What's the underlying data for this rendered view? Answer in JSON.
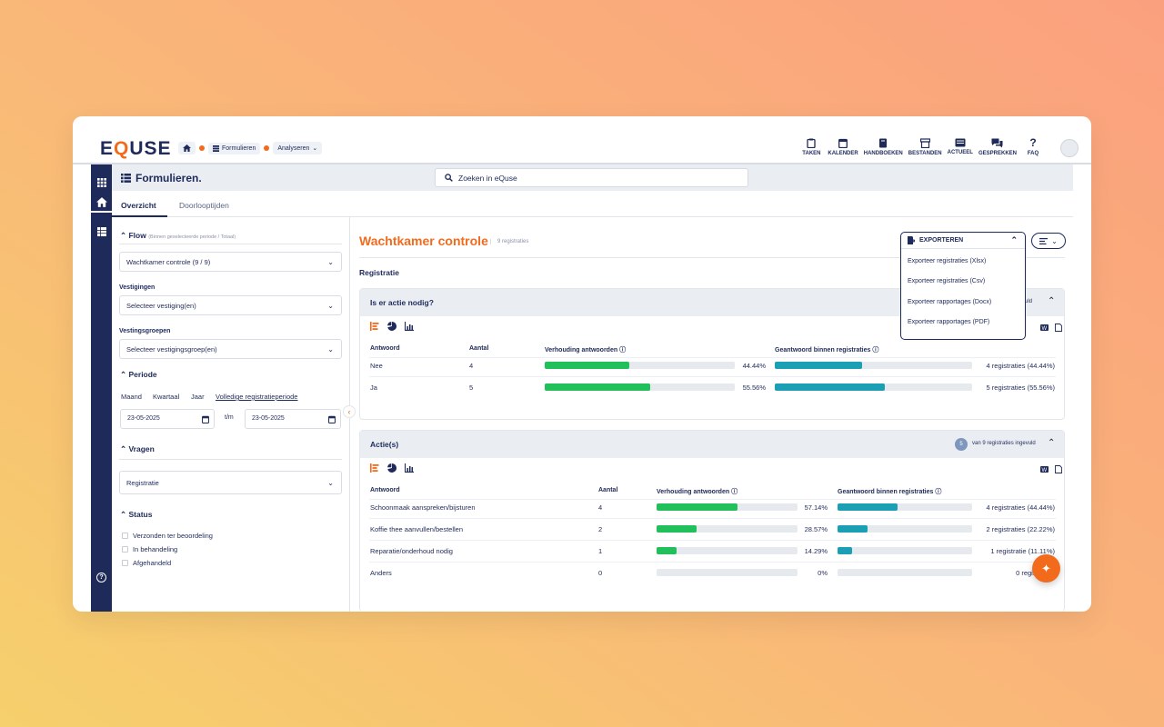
{
  "app": {
    "logo_prefix": "E",
    "logo_q": "Q",
    "logo_suffix": "USE"
  },
  "breadcrumb": {
    "home_icon": "home-icon",
    "items": [
      {
        "label": "Formulieren"
      },
      {
        "label": "Analyseren"
      }
    ]
  },
  "topnav": [
    {
      "label": "TAKEN",
      "icon": "clipboard-icon"
    },
    {
      "label": "KALENDER",
      "icon": "calendar-icon"
    },
    {
      "label": "HANDBOEKEN",
      "icon": "book-icon"
    },
    {
      "label": "BESTANDEN",
      "icon": "archive-icon"
    },
    {
      "label": "ACTUEEL",
      "icon": "news-icon"
    },
    {
      "label": "GESPREKKEN",
      "icon": "chat-icon"
    },
    {
      "label": "FAQ",
      "icon": "question-icon"
    }
  ],
  "header": {
    "title": "Formulieren.",
    "search_placeholder": "Zoeken in eQuse"
  },
  "tabs": [
    {
      "label": "Overzicht",
      "active": true
    },
    {
      "label": "Doorlooptijden",
      "active": false
    }
  ],
  "filters": {
    "flow": {
      "title": "Flow",
      "note": "(Binnen geselecteerde periode / Totaal)",
      "value": "Wachtkamer controle (9 / 9)"
    },
    "vestigingen": {
      "label": "Vestigingen",
      "placeholder": "Selecteer vestiging(en)"
    },
    "groepen": {
      "label": "Vestingsgroepen",
      "placeholder": "Selecteer vestigingsgroep(en)"
    },
    "periode": {
      "title": "Periode",
      "options": [
        "Maand",
        "Kwartaal",
        "Jaar"
      ],
      "full_link": "Volledige registratieperiode",
      "from": "23-05-2025",
      "sep": "t/m",
      "to": "23-05-2025"
    },
    "vragen": {
      "title": "Vragen",
      "value": "Registratie"
    },
    "status": {
      "title": "Status",
      "options": [
        "Verzonden ter beoordeling",
        "In behandeling",
        "Afgehandeld"
      ]
    }
  },
  "main": {
    "title": "Wachtkamer controle",
    "count": "9 registraties",
    "section": "Registratie",
    "export_label": "EXPORTEREN",
    "export_options": [
      "Exporteer registraties (Xlsx)",
      "Exporteer registraties (Csv)",
      "Exporteer rapportages (Docx)",
      "Exporteer rapportages (PDF)"
    ],
    "q1": {
      "title": "Is er actie nodig?",
      "badge_text": "vuld",
      "columns": [
        "Antwoord",
        "Aantal",
        "Verhouding antwoorden",
        "Geantwoord binnen registraties"
      ],
      "rows": [
        {
          "answer": "Nee",
          "count": "4",
          "ratio": 0.4444,
          "ratio_text": "44.44%",
          "within": 0.4444,
          "within_text": "4 registraties (44.44%)"
        },
        {
          "answer": "Ja",
          "count": "5",
          "ratio": 0.5556,
          "ratio_text": "55.56%",
          "within": 0.5556,
          "within_text": "5 registraties (55.56%)"
        }
      ]
    },
    "q2": {
      "title": "Actie(s)",
      "badge": "5",
      "badge_text": "van 9 registraties ingevuld",
      "columns": [
        "Antwoord",
        "Aantal",
        "Verhouding antwoorden",
        "Geantwoord binnen registraties"
      ],
      "rows": [
        {
          "answer": "Schoonmaak aanspreken/bijsturen",
          "count": "4",
          "ratio": 0.5714,
          "ratio_text": "57.14%",
          "within": 0.4444,
          "within_text": "4 registraties (44.44%)"
        },
        {
          "answer": "Koffie thee aanvullen/bestellen",
          "count": "2",
          "ratio": 0.2857,
          "ratio_text": "28.57%",
          "within": 0.2222,
          "within_text": "2 registraties (22.22%)"
        },
        {
          "answer": "Reparatie/onderhoud nodig",
          "count": "1",
          "ratio": 0.1429,
          "ratio_text": "14.29%",
          "within": 0.1111,
          "within_text": "1 registratie (11.11%)"
        },
        {
          "answer": "Anders",
          "count": "0",
          "ratio": 0,
          "ratio_text": "0%",
          "within": 0,
          "within_text": "0 registraties"
        }
      ]
    }
  },
  "colors": {
    "navy": "#1e2a5a",
    "orange": "#f26b1d",
    "green": "#22c05a",
    "teal": "#1a9fb5"
  }
}
